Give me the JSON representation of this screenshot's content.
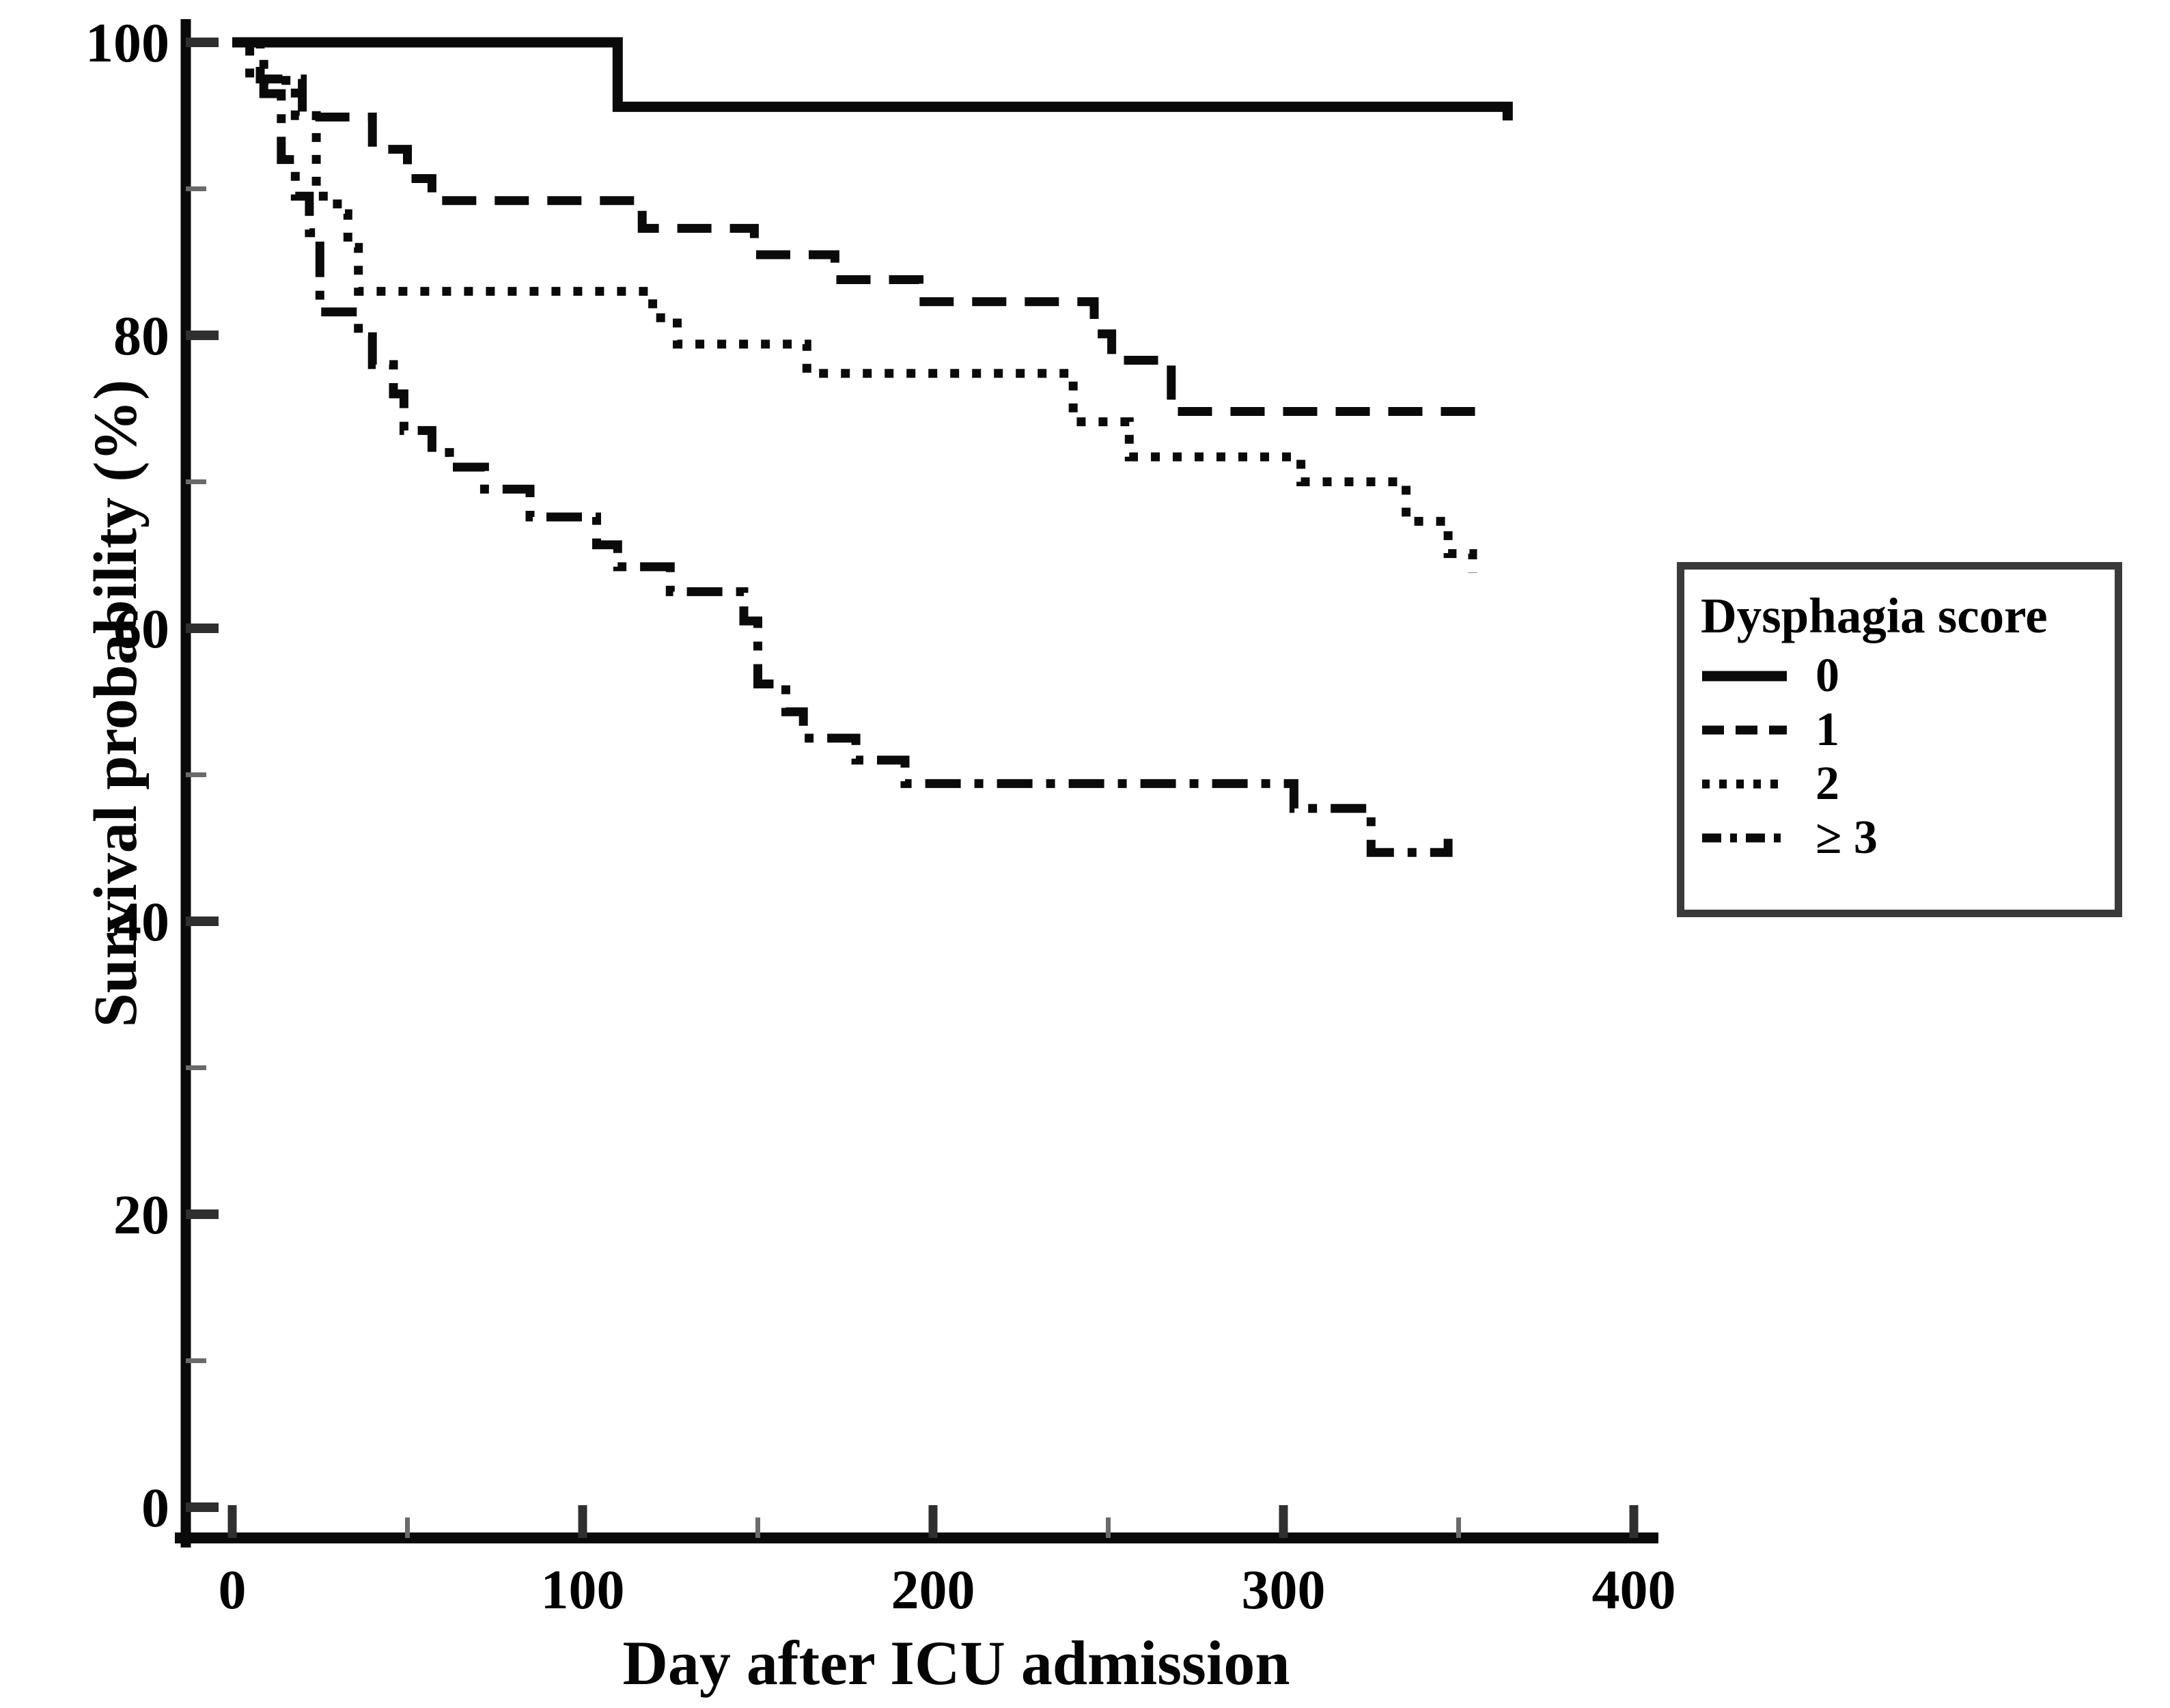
{
  "figure": {
    "y_axis_title": "Survival probability (%)",
    "x_axis_title": "Day after ICU admission"
  },
  "legend": {
    "title": "Dysphagia score",
    "items": [
      {
        "label": "0",
        "style": "solid"
      },
      {
        "label": "1",
        "style": "dashed"
      },
      {
        "label": "2",
        "style": "dotted"
      },
      {
        "label": "≥ 3",
        "style": "dashdot"
      }
    ]
  },
  "colors": {
    "line": "#0a0a0a",
    "axis": "#0a0a0a",
    "major_tick": "#2f2f2f",
    "minor_tick": "#6a6a6a",
    "text": "#000000",
    "legend_border": "#3a3a3a"
  },
  "chart_data": {
    "type": "line",
    "subtype": "kaplan-meier-step",
    "title": "",
    "xlabel": "Day after ICU admission",
    "ylabel": "Survival probability (%)",
    "xlim": [
      0,
      400
    ],
    "ylim": [
      0,
      100
    ],
    "x_ticks_major": [
      0,
      100,
      200,
      300,
      400
    ],
    "x_ticks_minor": [
      50,
      150,
      250,
      350
    ],
    "y_ticks_major": [
      100,
      80,
      60,
      40,
      20,
      0
    ],
    "y_ticks_minor": [
      90,
      70,
      50,
      30,
      10
    ],
    "grid": false,
    "legend_position": "right",
    "legend_title": "Dysphagia score",
    "series": [
      {
        "name": "0",
        "line_style": "solid",
        "end_tick": "down",
        "points": [
          [
            0,
            100
          ],
          [
            110,
            95.6
          ],
          [
            364,
            95.6
          ]
        ]
      },
      {
        "name": "1",
        "line_style": "dashed",
        "end_tick": "down",
        "points": [
          [
            0,
            100
          ],
          [
            8,
            97.5
          ],
          [
            20,
            94.9
          ],
          [
            40,
            92.7
          ],
          [
            50,
            90.7
          ],
          [
            57,
            89.2
          ],
          [
            117,
            87.3
          ],
          [
            149,
            85.5
          ],
          [
            172,
            83.8
          ],
          [
            196,
            82.3
          ],
          [
            246,
            80.1
          ],
          [
            251,
            78.3
          ],
          [
            268,
            74.8
          ],
          [
            355,
            74.8
          ]
        ]
      },
      {
        "name": "2",
        "line_style": "dotted",
        "end_tick": "none",
        "points": [
          [
            0,
            100
          ],
          [
            5,
            97.4
          ],
          [
            18,
            95
          ],
          [
            24,
            89.5
          ],
          [
            30,
            88.3
          ],
          [
            33,
            86
          ],
          [
            36,
            83
          ],
          [
            120,
            81.2
          ],
          [
            127,
            79.4
          ],
          [
            164,
            77.4
          ],
          [
            240,
            74.1
          ],
          [
            256,
            71.7
          ],
          [
            305,
            70
          ],
          [
            335,
            67.3
          ],
          [
            347,
            65.1
          ],
          [
            354,
            63.8
          ]
        ]
      },
      {
        "name": "≥ 3",
        "line_style": "dashdot",
        "end_tick": "up",
        "points": [
          [
            0,
            100
          ],
          [
            9,
            96.5
          ],
          [
            14,
            92
          ],
          [
            18,
            89.5
          ],
          [
            22,
            87
          ],
          [
            25,
            81.6
          ],
          [
            36,
            79.9
          ],
          [
            40,
            78
          ],
          [
            46,
            76
          ],
          [
            49,
            73.5
          ],
          [
            57,
            72
          ],
          [
            62,
            71
          ],
          [
            72,
            69.5
          ],
          [
            85,
            67.6
          ],
          [
            104,
            65.7
          ],
          [
            110,
            64.2
          ],
          [
            125,
            62.5
          ],
          [
            146,
            60.5
          ],
          [
            150,
            56.2
          ],
          [
            158,
            54.3
          ],
          [
            163,
            52.5
          ],
          [
            178,
            51
          ],
          [
            192,
            49.4
          ],
          [
            303,
            47.7
          ],
          [
            325,
            44.7
          ],
          [
            347,
            44.7
          ]
        ]
      }
    ]
  }
}
